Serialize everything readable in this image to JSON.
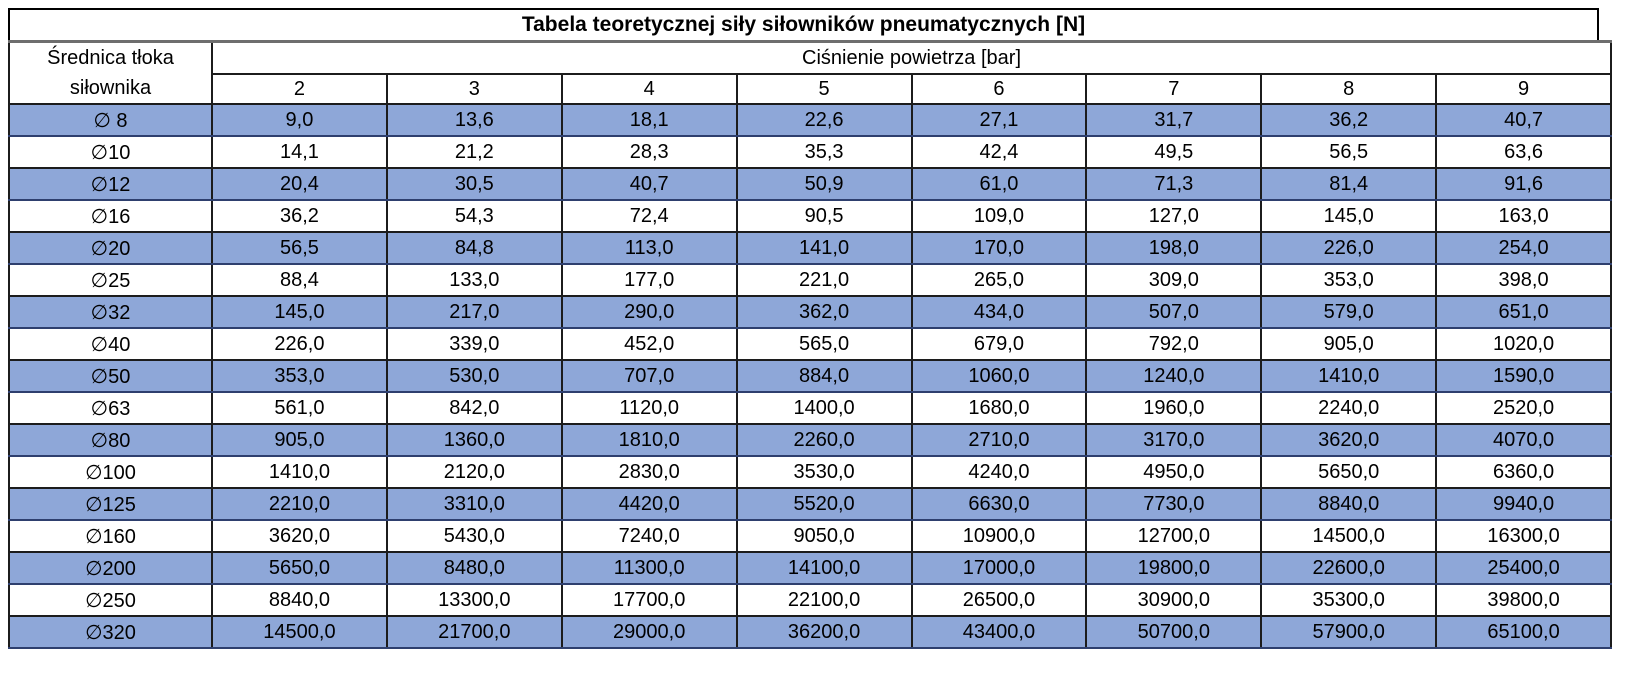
{
  "table": {
    "title": "Tabela teoretycznej siły siłowników pneumatycznych [N]",
    "col_header_left": "Średnica tłoka siłownika",
    "col_group_header": "Ciśnienie powietrza [bar]",
    "pressures": [
      "2",
      "3",
      "4",
      "5",
      "6",
      "7",
      "8",
      "9"
    ],
    "rows": [
      {
        "d": "∅ 8",
        "v": [
          "9,0",
          "13,6",
          "18,1",
          "22,6",
          "27,1",
          "31,7",
          "36,2",
          "40,7"
        ]
      },
      {
        "d": "∅10",
        "v": [
          "14,1",
          "21,2",
          "28,3",
          "35,3",
          "42,4",
          "49,5",
          "56,5",
          "63,6"
        ]
      },
      {
        "d": "∅12",
        "v": [
          "20,4",
          "30,5",
          "40,7",
          "50,9",
          "61,0",
          "71,3",
          "81,4",
          "91,6"
        ]
      },
      {
        "d": "∅16",
        "v": [
          "36,2",
          "54,3",
          "72,4",
          "90,5",
          "109,0",
          "127,0",
          "145,0",
          "163,0"
        ]
      },
      {
        "d": "∅20",
        "v": [
          "56,5",
          "84,8",
          "113,0",
          "141,0",
          "170,0",
          "198,0",
          "226,0",
          "254,0"
        ]
      },
      {
        "d": "∅25",
        "v": [
          "88,4",
          "133,0",
          "177,0",
          "221,0",
          "265,0",
          "309,0",
          "353,0",
          "398,0"
        ]
      },
      {
        "d": "∅32",
        "v": [
          "145,0",
          "217,0",
          "290,0",
          "362,0",
          "434,0",
          "507,0",
          "579,0",
          "651,0"
        ]
      },
      {
        "d": "∅40",
        "v": [
          "226,0",
          "339,0",
          "452,0",
          "565,0",
          "679,0",
          "792,0",
          "905,0",
          "1020,0"
        ]
      },
      {
        "d": "∅50",
        "v": [
          "353,0",
          "530,0",
          "707,0",
          "884,0",
          "1060,0",
          "1240,0",
          "1410,0",
          "1590,0"
        ]
      },
      {
        "d": "∅63",
        "v": [
          "561,0",
          "842,0",
          "1120,0",
          "1400,0",
          "1680,0",
          "1960,0",
          "2240,0",
          "2520,0"
        ]
      },
      {
        "d": "∅80",
        "v": [
          "905,0",
          "1360,0",
          "1810,0",
          "2260,0",
          "2710,0",
          "3170,0",
          "3620,0",
          "4070,0"
        ]
      },
      {
        "d": "∅100",
        "v": [
          "1410,0",
          "2120,0",
          "2830,0",
          "3530,0",
          "4240,0",
          "4950,0",
          "5650,0",
          "6360,0"
        ]
      },
      {
        "d": "∅125",
        "v": [
          "2210,0",
          "3310,0",
          "4420,0",
          "5520,0",
          "6630,0",
          "7730,0",
          "8840,0",
          "9940,0"
        ]
      },
      {
        "d": "∅160",
        "v": [
          "3620,0",
          "5430,0",
          "7240,0",
          "9050,0",
          "10900,0",
          "12700,0",
          "14500,0",
          "16300,0"
        ]
      },
      {
        "d": "∅200",
        "v": [
          "5650,0",
          "8480,0",
          "11300,0",
          "14100,0",
          "17000,0",
          "19800,0",
          "22600,0",
          "25400,0"
        ]
      },
      {
        "d": "∅250",
        "v": [
          "8840,0",
          "13300,0",
          "17700,0",
          "22100,0",
          "26500,0",
          "30900,0",
          "35300,0",
          "39800,0"
        ]
      },
      {
        "d": "∅320",
        "v": [
          "14500,0",
          "21700,0",
          "29000,0",
          "36200,0",
          "43400,0",
          "50700,0",
          "57900,0",
          "65100,0"
        ]
      }
    ],
    "colors": {
      "row_highlight": "#8EA7D8",
      "border": "#1c1c1c",
      "title_divider": "#6e6e6e"
    }
  }
}
